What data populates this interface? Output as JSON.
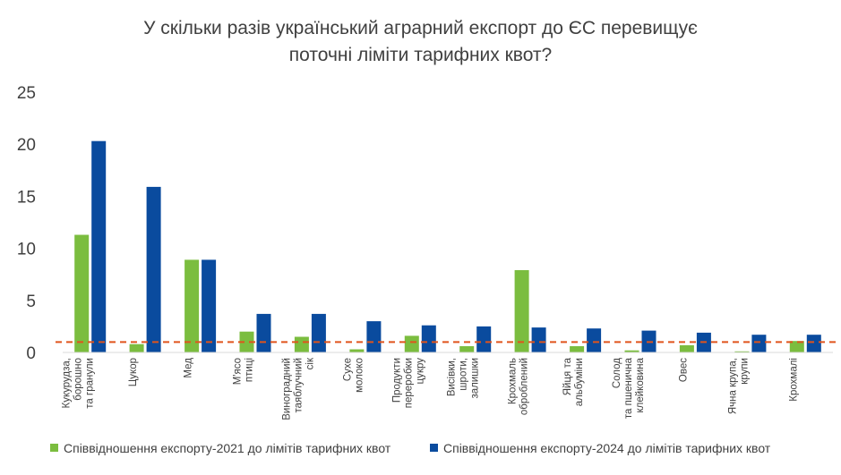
{
  "chart_data": {
    "type": "bar",
    "title": "У скільки разів український аграрний експорт до ЄС перевищує поточні ліміти тарифних квот?",
    "title_lines": [
      "У скільки разів український аграрний експорт до ЄС перевищує",
      "поточні ліміти тарифних квот?"
    ],
    "categories": [
      "Кукурудза, борошно та гранули",
      "Цукор",
      "Мед",
      "М'ясо птиці",
      "Виноградний та яблучний сік",
      "Сухе молоко",
      "Продукти переробки цукру",
      "Висівки, шроти, залишки",
      "Крохмаль оброблений",
      "Яйця та альбуміни",
      "Солод та пшенична клейковина",
      "Овес",
      "Ячна крупа, крупи",
      "Крохмалі"
    ],
    "category_lines": [
      [
        "Кукурудза,",
        "борошно",
        "та гранули"
      ],
      [
        "Цукор"
      ],
      [
        "Мед"
      ],
      [
        "М'ясо",
        "птиці"
      ],
      [
        "Виноградний",
        "таяблучний",
        "сік"
      ],
      [
        "Сухе",
        "молоко"
      ],
      [
        "Продукти",
        "переробки",
        "цукру"
      ],
      [
        "Висівки,",
        "шроти,",
        "залишки"
      ],
      [
        "Крохмаль",
        "оброблений"
      ],
      [
        "Яйця та",
        "альбуміни"
      ],
      [
        "Солод",
        "та пшенична",
        "клейковина"
      ],
      [
        "Овес"
      ],
      [
        "Ячна крупа,",
        "крупи"
      ],
      [
        "Крохмалі"
      ]
    ],
    "series": [
      {
        "name": "Співвідношення експорту-2021 до лімітів тарифних квот",
        "color": "#7bbd3f",
        "values": [
          11.3,
          0.8,
          8.9,
          2.0,
          1.5,
          0.3,
          1.6,
          0.6,
          7.9,
          0.6,
          0.2,
          0.7,
          0.1,
          1.1
        ]
      },
      {
        "name": "Співвідношення експорту-2024 до лімітів тарифних квот",
        "color": "#0a4b9e",
        "values": [
          20.3,
          15.9,
          8.9,
          3.7,
          3.7,
          3.0,
          2.6,
          2.5,
          2.4,
          2.3,
          2.1,
          1.9,
          1.7,
          1.7
        ]
      }
    ],
    "ylim": [
      0,
      25
    ],
    "yticks": [
      0,
      5,
      10,
      15,
      20,
      25
    ],
    "reference_line": {
      "value": 1,
      "style": "dashed",
      "color": "#e0541c"
    },
    "grid": false,
    "legend": "bottom"
  }
}
